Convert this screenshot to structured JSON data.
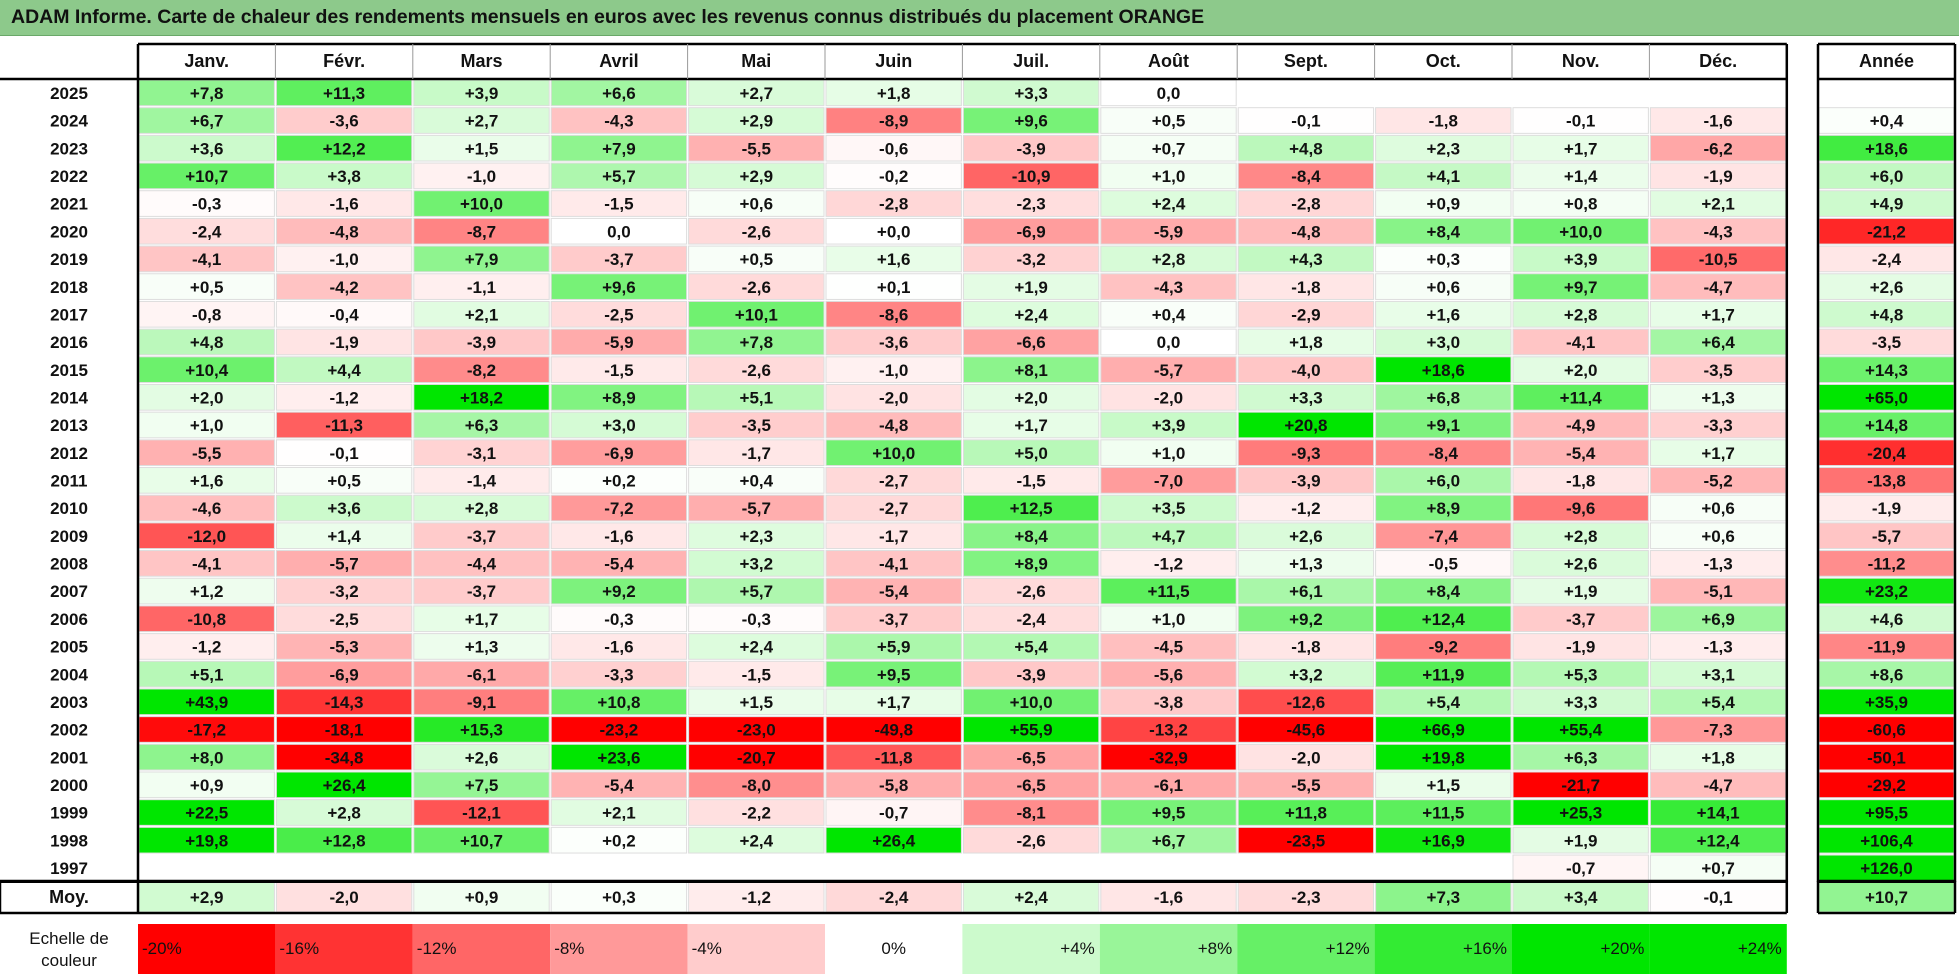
{
  "title": "ADAM Informe. Carte de chaleur des rendements mensuels en euros avec les revenus connus distribués du placement ORANGE",
  "colors": {
    "title_bg": "#8dc98b",
    "neg_max": "#ff0000",
    "pos_max": "#00e600",
    "zero": "#ffffff"
  },
  "chart_data": {
    "type": "heatmap",
    "title": "ADAM Informe. Carte de chaleur des rendements mensuels en euros avec les revenus connus distribués du placement ORANGE",
    "columns": [
      "Janv.",
      "Févr.",
      "Mars",
      "Avril",
      "Mai",
      "Juin",
      "Juil.",
      "Août",
      "Sept.",
      "Oct.",
      "Nov.",
      "Déc."
    ],
    "annual_header": "Année",
    "rows": [
      {
        "year": "2025",
        "values": [
          "+7,8",
          "+11,3",
          "+3,9",
          "+6,6",
          "+2,7",
          "+1,8",
          "+3,3",
          "0,0",
          "",
          "",
          "",
          ""
        ],
        "annual": ""
      },
      {
        "year": "2024",
        "values": [
          "+6,7",
          "-3,6",
          "+2,7",
          "-4,3",
          "+2,9",
          "-8,9",
          "+9,6",
          "+0,5",
          "-0,1",
          "-1,8",
          "-0,1",
          "-1,6"
        ],
        "annual": "+0,4"
      },
      {
        "year": "2023",
        "values": [
          "+3,6",
          "+12,2",
          "+1,5",
          "+7,9",
          "-5,5",
          "-0,6",
          "-3,9",
          "+0,7",
          "+4,8",
          "+2,3",
          "+1,7",
          "-6,2"
        ],
        "annual": "+18,6"
      },
      {
        "year": "2022",
        "values": [
          "+10,7",
          "+3,8",
          "-1,0",
          "+5,7",
          "+2,9",
          "-0,2",
          "-10,9",
          "+1,0",
          "-8,4",
          "+4,1",
          "+1,4",
          "-1,9"
        ],
        "annual": "+6,0"
      },
      {
        "year": "2021",
        "values": [
          "-0,3",
          "-1,6",
          "+10,0",
          "-1,5",
          "+0,6",
          "-2,8",
          "-2,3",
          "+2,4",
          "-2,8",
          "+0,9",
          "+0,8",
          "+2,1"
        ],
        "annual": "+4,9"
      },
      {
        "year": "2020",
        "values": [
          "-2,4",
          "-4,8",
          "-8,7",
          "0,0",
          "-2,6",
          "+0,0",
          "-6,9",
          "-5,9",
          "-4,8",
          "+8,4",
          "+10,0",
          "-4,3"
        ],
        "annual": "-21,2"
      },
      {
        "year": "2019",
        "values": [
          "-4,1",
          "-1,0",
          "+7,9",
          "-3,7",
          "+0,5",
          "+1,6",
          "-3,2",
          "+2,8",
          "+4,3",
          "+0,3",
          "+3,9",
          "-10,5"
        ],
        "annual": "-2,4"
      },
      {
        "year": "2018",
        "values": [
          "+0,5",
          "-4,2",
          "-1,1",
          "+9,6",
          "-2,6",
          "+0,1",
          "+1,9",
          "-4,3",
          "-1,8",
          "+0,6",
          "+9,7",
          "-4,7"
        ],
        "annual": "+2,6"
      },
      {
        "year": "2017",
        "values": [
          "-0,8",
          "-0,4",
          "+2,1",
          "-2,5",
          "+10,1",
          "-8,6",
          "+2,4",
          "+0,4",
          "-2,9",
          "+1,6",
          "+2,8",
          "+1,7"
        ],
        "annual": "+4,8"
      },
      {
        "year": "2016",
        "values": [
          "+4,8",
          "-1,9",
          "-3,9",
          "-5,9",
          "+7,8",
          "-3,6",
          "-6,6",
          "0,0",
          "+1,8",
          "+3,0",
          "-4,1",
          "+6,4"
        ],
        "annual": "-3,5"
      },
      {
        "year": "2015",
        "values": [
          "+10,4",
          "+4,4",
          "-8,2",
          "-1,5",
          "-2,6",
          "-1,0",
          "+8,1",
          "-5,7",
          "-4,0",
          "+18,6",
          "+2,0",
          "-3,5"
        ],
        "annual": "+14,3"
      },
      {
        "year": "2014",
        "values": [
          "+2,0",
          "-1,2",
          "+18,2",
          "+8,9",
          "+5,1",
          "-2,0",
          "+2,0",
          "-2,0",
          "+3,3",
          "+6,8",
          "+11,4",
          "+1,3"
        ],
        "annual": "+65,0"
      },
      {
        "year": "2013",
        "values": [
          "+1,0",
          "-11,3",
          "+6,3",
          "+3,0",
          "-3,5",
          "-4,8",
          "+1,7",
          "+3,9",
          "+20,8",
          "+9,1",
          "-4,9",
          "-3,3"
        ],
        "annual": "+14,8"
      },
      {
        "year": "2012",
        "values": [
          "-5,5",
          "-0,1",
          "-3,1",
          "-6,9",
          "-1,7",
          "+10,0",
          "+5,0",
          "+1,0",
          "-9,3",
          "-8,4",
          "-5,4",
          "+1,7"
        ],
        "annual": "-20,4"
      },
      {
        "year": "2011",
        "values": [
          "+1,6",
          "+0,5",
          "-1,4",
          "+0,2",
          "+0,4",
          "-2,7",
          "-1,5",
          "-7,0",
          "-3,9",
          "+6,0",
          "-1,8",
          "-5,2"
        ],
        "annual": "-13,8"
      },
      {
        "year": "2010",
        "values": [
          "-4,6",
          "+3,6",
          "+2,8",
          "-7,2",
          "-5,7",
          "-2,7",
          "+12,5",
          "+3,5",
          "-1,2",
          "+8,9",
          "-9,6",
          "+0,6"
        ],
        "annual": "-1,9"
      },
      {
        "year": "2009",
        "values": [
          "-12,0",
          "+1,4",
          "-3,7",
          "-1,6",
          "+2,3",
          "-1,7",
          "+8,4",
          "+4,7",
          "+2,6",
          "-7,4",
          "+2,8",
          "+0,6"
        ],
        "annual": "-5,7"
      },
      {
        "year": "2008",
        "values": [
          "-4,1",
          "-5,7",
          "-4,4",
          "-5,4",
          "+3,2",
          "-4,1",
          "+8,9",
          "-1,2",
          "+1,3",
          "-0,5",
          "+2,6",
          "-1,3"
        ],
        "annual": "-11,2"
      },
      {
        "year": "2007",
        "values": [
          "+1,2",
          "-3,2",
          "-3,7",
          "+9,2",
          "+5,7",
          "-5,4",
          "-2,6",
          "+11,5",
          "+6,1",
          "+8,4",
          "+1,9",
          "-5,1"
        ],
        "annual": "+23,2"
      },
      {
        "year": "2006",
        "values": [
          "-10,8",
          "-2,5",
          "+1,7",
          "-0,3",
          "-0,3",
          "-3,7",
          "-2,4",
          "+1,0",
          "+9,2",
          "+12,4",
          "-3,7",
          "+6,9"
        ],
        "annual": "+4,6"
      },
      {
        "year": "2005",
        "values": [
          "-1,2",
          "-5,3",
          "+1,3",
          "-1,6",
          "+2,4",
          "+5,9",
          "+5,4",
          "-4,5",
          "-1,8",
          "-9,2",
          "-1,9",
          "-1,3"
        ],
        "annual": "-11,9"
      },
      {
        "year": "2004",
        "values": [
          "+5,1",
          "-6,9",
          "-6,1",
          "-3,3",
          "-1,5",
          "+9,5",
          "-3,9",
          "-5,6",
          "+3,2",
          "+11,9",
          "+5,3",
          "+3,1"
        ],
        "annual": "+8,6"
      },
      {
        "year": "2003",
        "values": [
          "+43,9",
          "-14,3",
          "-9,1",
          "+10,8",
          "+1,5",
          "+1,7",
          "+10,0",
          "-3,8",
          "-12,6",
          "+5,4",
          "+3,3",
          "+5,4"
        ],
        "annual": "+35,9"
      },
      {
        "year": "2002",
        "values": [
          "-17,2",
          "-18,1",
          "+15,3",
          "-23,2",
          "-23,0",
          "-49,8",
          "+55,9",
          "-13,2",
          "-45,6",
          "+66,9",
          "+55,4",
          "-7,3"
        ],
        "annual": "-60,6"
      },
      {
        "year": "2001",
        "values": [
          "+8,0",
          "-34,8",
          "+2,6",
          "+23,6",
          "-20,7",
          "-11,8",
          "-6,5",
          "-32,9",
          "-2,0",
          "+19,8",
          "+6,3",
          "+1,8"
        ],
        "annual": "-50,1"
      },
      {
        "year": "2000",
        "values": [
          "+0,9",
          "+26,4",
          "+7,5",
          "-5,4",
          "-8,0",
          "-5,8",
          "-6,5",
          "-6,1",
          "-5,5",
          "+1,5",
          "-21,7",
          "-4,7"
        ],
        "annual": "-29,2"
      },
      {
        "year": "1999",
        "values": [
          "+22,5",
          "+2,8",
          "-12,1",
          "+2,1",
          "-2,2",
          "-0,7",
          "-8,1",
          "+9,5",
          "+11,8",
          "+11,5",
          "+25,3",
          "+14,1"
        ],
        "annual": "+95,5"
      },
      {
        "year": "1998",
        "values": [
          "+19,8",
          "+12,8",
          "+10,7",
          "+0,2",
          "+2,4",
          "+26,4",
          "-2,6",
          "+6,7",
          "-23,5",
          "+16,9",
          "+1,9",
          "+12,4"
        ],
        "annual": "+106,4"
      },
      {
        "year": "1997",
        "values": [
          "",
          "",
          "",
          "",
          "",
          "",
          "",
          "",
          "",
          "",
          "-0,7",
          "+0,7"
        ],
        "annual": "+126,0"
      }
    ],
    "average": {
      "label": "Moy.",
      "values": [
        "+2,9",
        "-2,0",
        "+0,9",
        "+0,3",
        "-1,2",
        "-2,4",
        "+2,4",
        "-1,6",
        "-2,3",
        "+7,3",
        "+3,4",
        "-0,1"
      ],
      "annual": "+10,7"
    },
    "scale": {
      "label": "Echelle de couleur",
      "steps": [
        "-20%",
        "-16%",
        "-12%",
        "-8%",
        "-4%",
        "0%",
        "+4%",
        "+8%",
        "+12%",
        "+16%",
        "+20%",
        "+24%"
      ]
    }
  }
}
